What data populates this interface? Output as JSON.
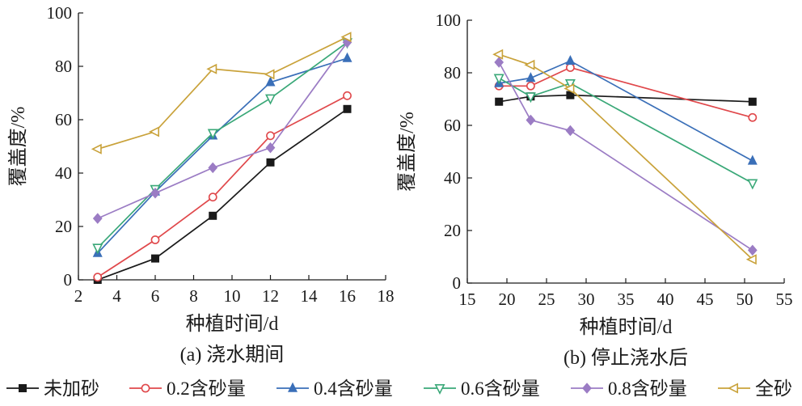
{
  "chart_data": [
    {
      "type": "line",
      "title": "",
      "caption": "(a) 浇水期间",
      "xlabel": "种植时间/d",
      "ylabel": "覆盖度/%",
      "xlim": [
        2,
        18
      ],
      "ylim": [
        0,
        100
      ],
      "xticks": [
        2,
        4,
        6,
        8,
        10,
        12,
        14,
        16,
        18
      ],
      "yticks": [
        0,
        20,
        40,
        60,
        80,
        100
      ],
      "grid": false,
      "x": [
        3,
        6,
        9,
        12,
        16
      ],
      "series": [
        {
          "name": "未加砂",
          "values": [
            0,
            8,
            24,
            44,
            64
          ]
        },
        {
          "name": "0.2含砂量",
          "values": [
            1,
            15,
            31,
            54,
            69
          ]
        },
        {
          "name": "0.4含砂量",
          "values": [
            10,
            33,
            54,
            74,
            83
          ]
        },
        {
          "name": "0.6含砂量",
          "values": [
            12,
            34,
            55,
            68,
            89
          ]
        },
        {
          "name": "0.8含砂量",
          "values": [
            23,
            32.5,
            42,
            49.5,
            89
          ]
        },
        {
          "name": "全砂",
          "values": [
            49,
            55.5,
            79,
            77,
            91
          ]
        }
      ]
    },
    {
      "type": "line",
      "title": "",
      "caption": "(b) 停止浇水后",
      "xlabel": "种植时间/d",
      "ylabel": "覆盖度/%",
      "xlim": [
        15,
        55
      ],
      "ylim": [
        0,
        100
      ],
      "xticks": [
        15,
        20,
        25,
        30,
        35,
        40,
        45,
        50,
        55
      ],
      "yticks": [
        0,
        20,
        40,
        60,
        80,
        100
      ],
      "grid": false,
      "x": [
        19,
        23,
        28,
        51
      ],
      "series": [
        {
          "name": "未加砂",
          "values": [
            69,
            71,
            71.5,
            69
          ]
        },
        {
          "name": "0.2含砂量",
          "values": [
            75,
            75,
            82,
            63
          ]
        },
        {
          "name": "0.4含砂量",
          "values": [
            76,
            78,
            84.5,
            46.5
          ]
        },
        {
          "name": "0.6含砂量",
          "values": [
            78,
            71,
            76,
            38
          ]
        },
        {
          "name": "0.8含砂量",
          "values": [
            84,
            62,
            58,
            12.5
          ]
        },
        {
          "name": "全砂",
          "values": [
            87,
            83,
            74,
            9
          ]
        }
      ]
    }
  ],
  "legend": {
    "placement": "bottom",
    "items": [
      {
        "name": "未加砂",
        "color": "#1a1a1a",
        "marker": "square-filled"
      },
      {
        "name": "0.2含砂量",
        "color": "#e0484b",
        "marker": "circle-open"
      },
      {
        "name": "0.4含砂量",
        "color": "#3a6fb8",
        "marker": "triangle-up-filled"
      },
      {
        "name": "0.6含砂量",
        "color": "#3aa878",
        "marker": "triangle-down-open"
      },
      {
        "name": "0.8含砂量",
        "color": "#9b7cc4",
        "marker": "diamond-filled"
      },
      {
        "name": "全砂",
        "color": "#c9a23a",
        "marker": "triangle-left-open"
      }
    ]
  }
}
